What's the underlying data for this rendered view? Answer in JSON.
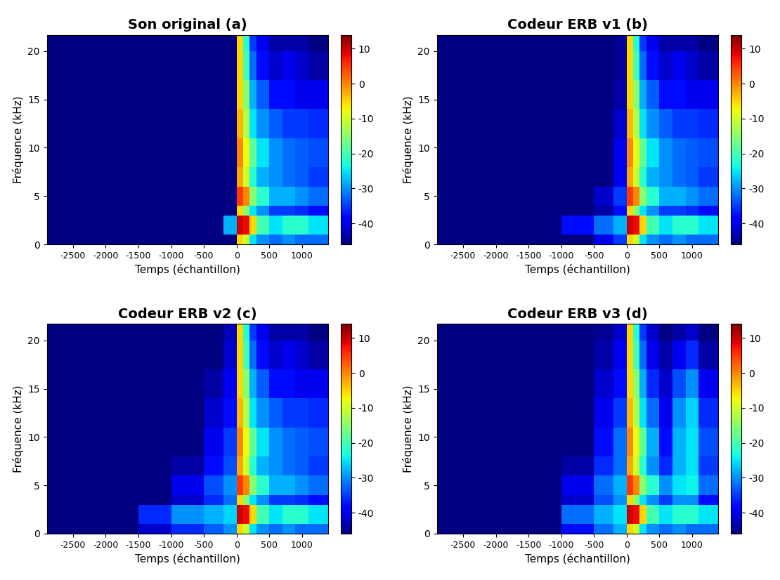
{
  "chart_data": [
    {
      "type": "heatmap",
      "title": "Son original (a)",
      "x_label": "Temps (échantillon)",
      "y_label": "Fréquence (kHz)",
      "x_edges": [
        -2900,
        -2500,
        -2000,
        -1500,
        -1000,
        -500,
        -200,
        0,
        100,
        200,
        300,
        500,
        700,
        900,
        1100,
        1400
      ],
      "y_edges": [
        0,
        1,
        3,
        4,
        6,
        8,
        11,
        14,
        17,
        20,
        22
      ],
      "xlim": [
        -2900,
        1400
      ],
      "ylim": [
        0,
        21.7
      ],
      "xticks": [
        -2500,
        -2000,
        -1500,
        -1000,
        -500,
        0,
        500,
        1000
      ],
      "yticks": [
        0,
        5,
        10,
        15,
        20
      ],
      "colorbar_range": [
        -46,
        14
      ],
      "colorbar_ticks": [
        -40,
        -30,
        -20,
        -10,
        0,
        10
      ],
      "cells": [
        [
          -46,
          -46,
          -46,
          -46,
          -46,
          -46,
          -46,
          -5,
          -10,
          -25,
          -30,
          -32,
          -30,
          -32,
          -32
        ],
        [
          -46,
          -46,
          -46,
          -46,
          -46,
          -46,
          -28,
          10,
          8,
          -5,
          -20,
          -25,
          -22,
          -22,
          -25
        ],
        [
          -46,
          -46,
          -46,
          -46,
          -46,
          -46,
          -46,
          -5,
          -15,
          -25,
          -30,
          -35,
          -35,
          -36,
          -38
        ],
        [
          -46,
          -46,
          -46,
          -46,
          -46,
          -46,
          -46,
          5,
          0,
          -15,
          -22,
          -28,
          -28,
          -30,
          -32
        ],
        [
          -46,
          -46,
          -46,
          -46,
          -46,
          -46,
          -46,
          -2,
          -10,
          -22,
          -28,
          -30,
          -32,
          -33,
          -35
        ],
        [
          -46,
          -46,
          -46,
          -46,
          -46,
          -46,
          -46,
          0,
          -8,
          -18,
          -25,
          -30,
          -32,
          -33,
          -34
        ],
        [
          -46,
          -46,
          -46,
          -46,
          -46,
          -46,
          -46,
          -3,
          -12,
          -25,
          -30,
          -33,
          -35,
          -35,
          -36
        ],
        [
          -46,
          -46,
          -46,
          -46,
          -46,
          -46,
          -46,
          -5,
          -15,
          -28,
          -33,
          -38,
          -38,
          -40,
          -40
        ],
        [
          -46,
          -46,
          -46,
          -46,
          -46,
          -46,
          -46,
          -5,
          -20,
          -32,
          -38,
          -42,
          -40,
          -42,
          -44
        ],
        [
          -46,
          -46,
          -46,
          -46,
          -46,
          -46,
          -46,
          -5,
          -22,
          -35,
          -40,
          -44,
          -44,
          -44,
          -46
        ]
      ]
    },
    {
      "type": "heatmap",
      "title": "Codeur ERB v1 (b)",
      "x_label": "Temps (échantillon)",
      "y_label": "Fréquence (kHz)",
      "x_edges": [
        -2900,
        -2500,
        -2000,
        -1500,
        -1000,
        -500,
        -200,
        0,
        100,
        200,
        300,
        500,
        700,
        900,
        1100,
        1400
      ],
      "y_edges": [
        0,
        1,
        3,
        4,
        6,
        8,
        11,
        14,
        17,
        20,
        22
      ],
      "xlim": [
        -2900,
        1400
      ],
      "ylim": [
        0,
        21.7
      ],
      "xticks": [
        -2500,
        -2000,
        -1500,
        -1000,
        -500,
        0,
        500,
        1000
      ],
      "yticks": [
        0,
        5,
        10,
        15,
        20
      ],
      "colorbar_range": [
        -46,
        14
      ],
      "colorbar_ticks": [
        -40,
        -30,
        -20,
        -10,
        0,
        10
      ],
      "cells": [
        [
          -46,
          -46,
          -46,
          -46,
          -46,
          -40,
          -35,
          -5,
          -10,
          -25,
          -30,
          -32,
          -30,
          -32,
          -32
        ],
        [
          -46,
          -46,
          -46,
          -46,
          -38,
          -32,
          -28,
          10,
          8,
          -5,
          -20,
          -25,
          -22,
          -22,
          -25
        ],
        [
          -46,
          -46,
          -46,
          -46,
          -46,
          -44,
          -38,
          -5,
          -15,
          -25,
          -30,
          -35,
          -35,
          -36,
          -38
        ],
        [
          -46,
          -46,
          -46,
          -46,
          -46,
          -42,
          -35,
          5,
          0,
          -15,
          -22,
          -28,
          -28,
          -30,
          -32
        ],
        [
          -46,
          -46,
          -46,
          -46,
          -46,
          -46,
          -40,
          -2,
          -10,
          -22,
          -28,
          -30,
          -32,
          -33,
          -35
        ],
        [
          -46,
          -46,
          -46,
          -46,
          -46,
          -46,
          -40,
          0,
          -8,
          -18,
          -25,
          -30,
          -32,
          -33,
          -34
        ],
        [
          -46,
          -46,
          -46,
          -46,
          -46,
          -46,
          -42,
          -3,
          -12,
          -25,
          -30,
          -33,
          -35,
          -35,
          -36
        ],
        [
          -46,
          -46,
          -46,
          -46,
          -46,
          -46,
          -44,
          -5,
          -15,
          -28,
          -33,
          -38,
          -38,
          -40,
          -40
        ],
        [
          -46,
          -46,
          -46,
          -46,
          -46,
          -46,
          -45,
          -5,
          -20,
          -32,
          -38,
          -42,
          -40,
          -42,
          -44
        ],
        [
          -46,
          -46,
          -46,
          -46,
          -46,
          -46,
          -45,
          -5,
          -22,
          -35,
          -40,
          -44,
          -44,
          -44,
          -46
        ]
      ]
    },
    {
      "type": "heatmap",
      "title": "Codeur ERB v2 (c)",
      "x_label": "Temps (échantillon)",
      "y_label": "Fréquence (kHz)",
      "x_edges": [
        -2900,
        -2500,
        -2000,
        -1500,
        -1000,
        -500,
        -200,
        0,
        100,
        200,
        300,
        500,
        700,
        900,
        1100,
        1400
      ],
      "y_edges": [
        0,
        1,
        3,
        4,
        6,
        8,
        11,
        14,
        17,
        20,
        22
      ],
      "xlim": [
        -2900,
        1400
      ],
      "ylim": [
        0,
        21.7
      ],
      "xticks": [
        -2500,
        -2000,
        -1500,
        -1000,
        -500,
        0,
        500,
        1000
      ],
      "yticks": [
        0,
        5,
        10,
        15,
        20
      ],
      "colorbar_range": [
        -46,
        14
      ],
      "colorbar_ticks": [
        -40,
        -30,
        -20,
        -10,
        0,
        10
      ],
      "cells": [
        [
          -46,
          -46,
          -46,
          -42,
          -36,
          -33,
          -30,
          -5,
          -10,
          -25,
          -30,
          -32,
          -30,
          -32,
          -32
        ],
        [
          -46,
          -46,
          -46,
          -36,
          -30,
          -28,
          -26,
          10,
          8,
          -5,
          -20,
          -25,
          -22,
          -22,
          -25
        ],
        [
          -46,
          -46,
          -46,
          -46,
          -42,
          -36,
          -32,
          -5,
          -15,
          -25,
          -30,
          -35,
          -35,
          -36,
          -38
        ],
        [
          -46,
          -46,
          -46,
          -46,
          -40,
          -34,
          -30,
          5,
          0,
          -15,
          -22,
          -28,
          -28,
          -30,
          -32
        ],
        [
          -46,
          -46,
          -46,
          -46,
          -44,
          -38,
          -34,
          -2,
          -10,
          -22,
          -28,
          -30,
          -32,
          -33,
          -35
        ],
        [
          -46,
          -46,
          -46,
          -46,
          -46,
          -40,
          -35,
          0,
          -8,
          -18,
          -25,
          -30,
          -32,
          -33,
          -34
        ],
        [
          -46,
          -46,
          -46,
          -46,
          -46,
          -42,
          -38,
          -3,
          -12,
          -25,
          -30,
          -33,
          -35,
          -35,
          -36
        ],
        [
          -46,
          -46,
          -46,
          -46,
          -46,
          -44,
          -40,
          -5,
          -15,
          -28,
          -33,
          -38,
          -38,
          -40,
          -40
        ],
        [
          -46,
          -46,
          -46,
          -46,
          -46,
          -46,
          -42,
          -5,
          -20,
          -32,
          -38,
          -42,
          -40,
          -42,
          -44
        ],
        [
          -46,
          -46,
          -46,
          -46,
          -46,
          -46,
          -43,
          -5,
          -22,
          -35,
          -40,
          -44,
          -44,
          -44,
          -46
        ]
      ]
    },
    {
      "type": "heatmap",
      "title": "Codeur ERB v3 (d)",
      "x_label": "Temps (échantillon)",
      "y_label": "Fréquence (kHz)",
      "x_edges": [
        -2900,
        -2500,
        -2000,
        -1500,
        -1000,
        -500,
        -200,
        0,
        100,
        200,
        300,
        500,
        700,
        900,
        1100,
        1400
      ],
      "y_edges": [
        0,
        1,
        3,
        4,
        6,
        8,
        11,
        14,
        17,
        20,
        22
      ],
      "xlim": [
        -2900,
        1400
      ],
      "ylim": [
        0,
        21.7
      ],
      "xticks": [
        -2500,
        -2000,
        -1500,
        -1000,
        -500,
        0,
        500,
        1000
      ],
      "yticks": [
        0,
        5,
        10,
        15,
        20
      ],
      "colorbar_range": [
        -46,
        14
      ],
      "colorbar_ticks": [
        -40,
        -30,
        -20,
        -10,
        0,
        10
      ],
      "cells": [
        [
          -46,
          -46,
          -46,
          -46,
          -38,
          -32,
          -28,
          -5,
          -10,
          -25,
          -30,
          -32,
          -30,
          -32,
          -32
        ],
        [
          -46,
          -46,
          -46,
          -46,
          -32,
          -28,
          -25,
          10,
          8,
          -5,
          -20,
          -25,
          -22,
          -22,
          -25
        ],
        [
          -46,
          -46,
          -46,
          -46,
          -42,
          -34,
          -30,
          -5,
          -15,
          -25,
          -30,
          -35,
          -30,
          -30,
          -38
        ],
        [
          -46,
          -46,
          -46,
          -46,
          -40,
          -32,
          -28,
          5,
          0,
          -15,
          -22,
          -30,
          -25,
          -24,
          -32
        ],
        [
          -46,
          -46,
          -46,
          -46,
          -44,
          -36,
          -32,
          -2,
          -10,
          -22,
          -30,
          -36,
          -28,
          -25,
          -35
        ],
        [
          -46,
          -46,
          -46,
          -46,
          -46,
          -38,
          -32,
          0,
          -8,
          -18,
          -28,
          -38,
          -28,
          -25,
          -34
        ],
        [
          -46,
          -46,
          -46,
          -46,
          -46,
          -40,
          -35,
          -3,
          -12,
          -25,
          -32,
          -40,
          -30,
          -26,
          -36
        ],
        [
          -46,
          -46,
          -46,
          -46,
          -46,
          -42,
          -38,
          -5,
          -15,
          -28,
          -36,
          -42,
          -34,
          -30,
          -40
        ],
        [
          -46,
          -46,
          -46,
          -46,
          -46,
          -44,
          -40,
          -5,
          -20,
          -32,
          -40,
          -44,
          -40,
          -36,
          -44
        ],
        [
          -46,
          -46,
          -46,
          -46,
          -46,
          -45,
          -42,
          -5,
          -22,
          -35,
          -42,
          -46,
          -44,
          -42,
          -46
        ]
      ]
    }
  ]
}
